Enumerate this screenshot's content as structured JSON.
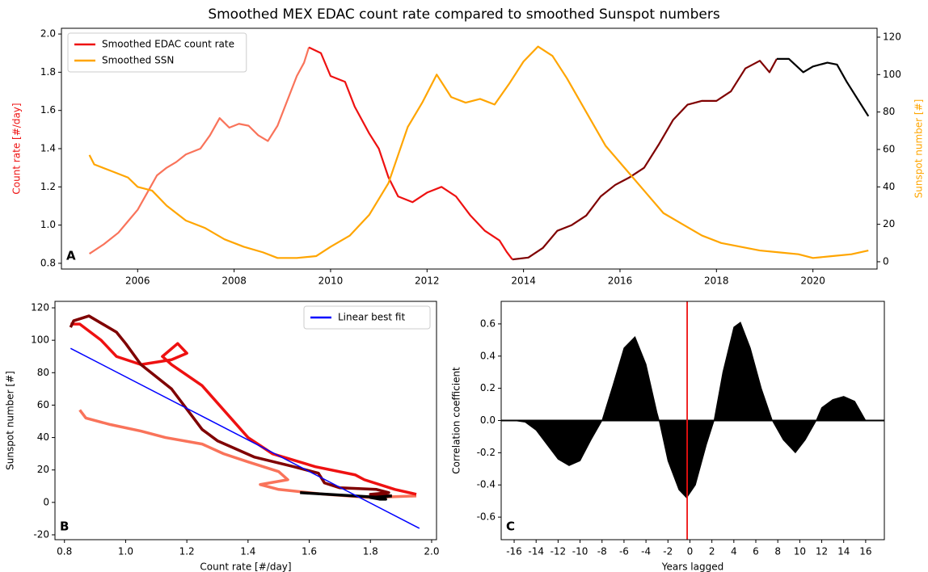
{
  "chart_data": [
    {
      "type": "line",
      "title": "Smoothed MEX EDAC count rate compared to smoothed Sunspot numbers",
      "panel_label": "A",
      "ylabel": "Count rate [#/day]",
      "ylabel_color": "#ee1111",
      "y2label": "Sunspot number [#]",
      "y2label_color": "#ffa500",
      "xlim": [
        2004.42,
        2021.33
      ],
      "xticks": [
        2006,
        2008,
        2010,
        2012,
        2014,
        2016,
        2018,
        2020
      ],
      "ylim": [
        0.77,
        2.03
      ],
      "yticks": [
        0.8,
        {
          "value": 1.0,
          "label": "1.0"
        },
        1.2,
        1.4,
        1.6,
        1.8,
        {
          "value": 2.0,
          "label": "2.0"
        }
      ],
      "y2lim": [
        -3.9,
        124.75
      ],
      "y2ticks": [
        0,
        20,
        40,
        60,
        80,
        100,
        120
      ],
      "legend": "upper left",
      "series": [
        {
          "color": "#f9735a",
          "x": [
            2005.0,
            2005.3,
            2005.6,
            2005.8,
            2006.0,
            2006.2,
            2006.4,
            2006.6,
            2006.8,
            2007.0,
            2007.3,
            2007.5,
            2007.7,
            2007.9,
            2008.1,
            2008.3,
            2008.5,
            2008.7,
            2008.9,
            2009.1,
            2009.3,
            2009.45,
            2009.55
          ],
          "values": [
            0.85,
            0.9,
            0.96,
            1.02,
            1.08,
            1.17,
            1.26,
            1.3,
            1.33,
            1.37,
            1.4,
            1.47,
            1.56,
            1.51,
            1.53,
            1.52,
            1.47,
            1.44,
            1.52,
            1.65,
            1.78,
            1.85,
            1.93
          ]
        },
        {
          "name": "Smoothed EDAC count rate",
          "color": "#ee1111",
          "x": [
            2009.55,
            2009.8,
            2010.0,
            2010.3,
            2010.5,
            2010.8,
            2011.0,
            2011.2,
            2011.4,
            2011.7,
            2012.0,
            2012.3,
            2012.6,
            2012.9,
            2013.2,
            2013.5,
            2013.65,
            2013.77
          ],
          "values": [
            1.93,
            1.9,
            1.78,
            1.75,
            1.62,
            1.48,
            1.4,
            1.25,
            1.15,
            1.12,
            1.17,
            1.2,
            1.15,
            1.05,
            0.97,
            0.92,
            0.86,
            0.82
          ]
        },
        {
          "color": "#7f0000",
          "x": [
            2013.77,
            2014.1,
            2014.4,
            2014.7,
            2015.0,
            2015.3,
            2015.6,
            2015.9,
            2016.2,
            2016.5,
            2016.8,
            2017.1,
            2017.4,
            2017.7,
            2018.0,
            2018.3,
            2018.6,
            2018.9,
            2019.1,
            2019.25
          ],
          "values": [
            0.82,
            0.83,
            0.88,
            0.97,
            1.0,
            1.05,
            1.15,
            1.21,
            1.25,
            1.3,
            1.42,
            1.55,
            1.63,
            1.65,
            1.65,
            1.7,
            1.82,
            1.86,
            1.8,
            1.87
          ]
        },
        {
          "color": "#000000",
          "x": [
            2019.25,
            2019.5,
            2019.8,
            2020.0,
            2020.3,
            2020.5,
            2020.7,
            2021.15
          ],
          "values": [
            1.87,
            1.87,
            1.8,
            1.83,
            1.85,
            1.84,
            1.75,
            1.57
          ]
        },
        {
          "name": "Smoothed SSN",
          "color": "#ffa500",
          "axis": "y2",
          "x": [
            2005.0,
            2005.1,
            2005.5,
            2005.8,
            2006.0,
            2006.3,
            2006.6,
            2007.0,
            2007.4,
            2007.8,
            2008.2,
            2008.6,
            2008.9,
            2009.3,
            2009.7,
            2010.0,
            2010.4,
            2010.8,
            2011.2,
            2011.6,
            2011.9,
            2012.2,
            2012.5,
            2012.8,
            2013.1,
            2013.4,
            2013.7,
            2014.0,
            2014.3,
            2014.6,
            2014.9,
            2015.3,
            2015.7,
            2016.1,
            2016.5,
            2016.9,
            2017.3,
            2017.7,
            2018.1,
            2018.5,
            2018.9,
            2019.3,
            2019.7,
            2020.0,
            2020.4,
            2020.8,
            2021.15
          ],
          "values": [
            57,
            52,
            48,
            45,
            40,
            38,
            30,
            22,
            18,
            12,
            8,
            5,
            2,
            2,
            3,
            8,
            14,
            25,
            42,
            72,
            85,
            100,
            88,
            85,
            87,
            84,
            95,
            107,
            115,
            110,
            98,
            80,
            62,
            50,
            38,
            26,
            20,
            14,
            10,
            8,
            6,
            5,
            4,
            2,
            3,
            4,
            6
          ]
        }
      ]
    },
    {
      "type": "line",
      "panel_label": "B",
      "xlabel": "Count rate [#/day]",
      "ylabel": "Sunspot number [#]",
      "xlim": [
        0.769,
        2.016
      ],
      "xticks": [
        0.8,
        {
          "value": 1.0,
          "label": "1.0"
        },
        1.2,
        1.4,
        1.6,
        1.8,
        {
          "value": 2.0,
          "label": "2.0"
        }
      ],
      "ylim": [
        -23,
        124
      ],
      "yticks": [
        -20,
        0,
        20,
        40,
        60,
        80,
        100,
        120
      ],
      "legend": "upper right",
      "series": [
        {
          "color": "#f9735a",
          "x": [
            0.85,
            0.87,
            0.95,
            1.05,
            1.13,
            1.25,
            1.32,
            1.4,
            1.5,
            1.53,
            1.44,
            1.5,
            1.65,
            1.8,
            1.95
          ],
          "values": [
            57,
            52,
            48,
            44,
            40,
            36,
            30,
            25,
            19,
            14,
            11,
            8,
            5,
            3,
            4
          ]
        },
        {
          "color": "#ee1111",
          "x": [
            1.95,
            1.88,
            1.78,
            1.75,
            1.62,
            1.48,
            1.4,
            1.25,
            1.15,
            1.12,
            1.17,
            1.2,
            1.15,
            1.05,
            0.97,
            0.92,
            0.85,
            0.82
          ],
          "values": [
            5,
            8,
            14,
            17,
            22,
            30,
            40,
            72,
            85,
            90,
            98,
            92,
            88,
            85,
            90,
            100,
            110,
            110
          ]
        },
        {
          "color": "#7f0000",
          "x": [
            0.82,
            0.83,
            0.88,
            0.97,
            1.0,
            1.05,
            1.15,
            1.21,
            1.25,
            1.3,
            1.42,
            1.55,
            1.63,
            1.65,
            1.7,
            1.82,
            1.86,
            1.8,
            1.87
          ],
          "values": [
            108,
            112,
            115,
            105,
            98,
            85,
            70,
            55,
            45,
            38,
            28,
            22,
            18,
            12,
            9,
            8,
            6,
            5,
            4
          ]
        },
        {
          "color": "#000000",
          "x": [
            1.87,
            1.8,
            1.83,
            1.85,
            1.84,
            1.75,
            1.57
          ],
          "values": [
            4,
            3,
            2,
            2,
            3,
            4,
            6
          ]
        },
        {
          "name": "Linear best fit",
          "color": "#0000ff",
          "thin": true,
          "x": [
            0.82,
            1.96
          ],
          "values": [
            95,
            -16
          ]
        }
      ]
    },
    {
      "type": "area",
      "panel_label": "C",
      "xlabel": "Years lagged",
      "ylabel": "Correlation coefficient",
      "color": "#000000",
      "marker_x": -0.25,
      "marker_color": "#ee1111",
      "xlim": [
        -17.18,
        17.7
      ],
      "xticks": [
        -16,
        -14,
        -12,
        -10,
        -8,
        -6,
        -4,
        -2,
        0,
        2,
        4,
        6,
        8,
        10,
        12,
        14,
        16
      ],
      "ylim": [
        -0.74,
        0.74
      ],
      "yticks": [
        -0.6,
        -0.4,
        -0.2,
        {
          "value": 0,
          "label": "0.0"
        },
        0.2,
        0.4,
        0.6
      ],
      "x": [
        -16,
        -15,
        -14,
        -13,
        -12,
        -11,
        -10,
        -9,
        -8,
        -7,
        -6,
        -5,
        -4,
        -3,
        -2.8,
        -2,
        -1,
        -0.3,
        0.5,
        1.5,
        2.2,
        3,
        4,
        4.6,
        5.5,
        6.5,
        7.5,
        8.5,
        9.6,
        10.5,
        11.5,
        12,
        13,
        14,
        15,
        16
      ],
      "values": [
        0,
        -0.01,
        -0.06,
        -0.15,
        -0.24,
        -0.28,
        -0.25,
        -0.12,
        0.0,
        0.22,
        0.45,
        0.52,
        0.35,
        0.05,
        0.0,
        -0.25,
        -0.43,
        -0.48,
        -0.4,
        -0.15,
        0.0,
        0.3,
        0.58,
        0.61,
        0.45,
        0.2,
        0.0,
        -0.12,
        -0.2,
        -0.12,
        0.0,
        0.08,
        0.13,
        0.15,
        0.12,
        0.0
      ]
    }
  ]
}
